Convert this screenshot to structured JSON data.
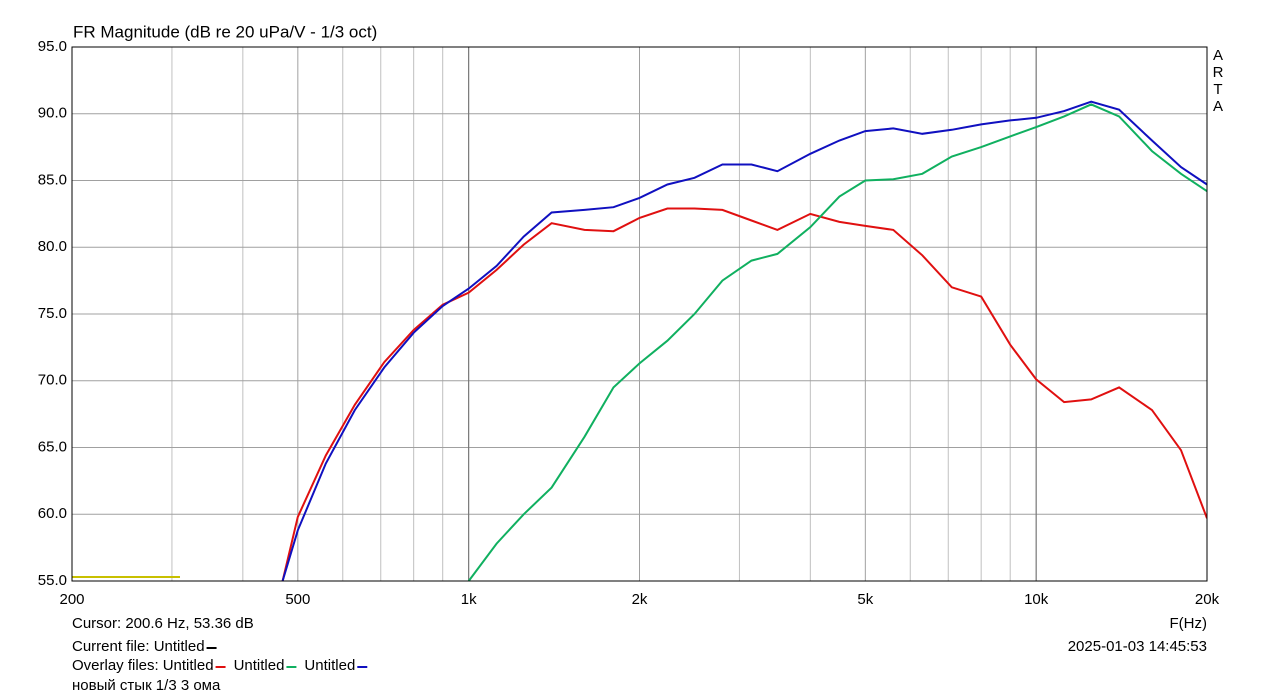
{
  "chart_data": {
    "type": "line",
    "title": "FR Magnitude (dB re 20 uPa/V - 1/3 oct)",
    "side_label": [
      "A",
      "R",
      "T",
      "A"
    ],
    "x_label": "F(Hz)",
    "log_x": true,
    "grid": true,
    "xlim": [
      200,
      20000
    ],
    "ylim": [
      55,
      95
    ],
    "xticks": [
      200,
      500,
      {
        "value": 1000,
        "label": "1k"
      },
      {
        "value": 2000,
        "label": "2k"
      },
      {
        "value": 5000,
        "label": "5k"
      },
      {
        "value": 10000,
        "label": "10k"
      },
      {
        "value": 20000,
        "label": "20k"
      }
    ],
    "xgrid_minor": [
      300,
      400,
      600,
      700,
      800,
      900,
      3000,
      4000,
      6000,
      7000,
      8000,
      9000
    ],
    "xgrid_major": [
      1000,
      10000
    ],
    "yticks": [
      {
        "value": 55,
        "label": "55.0"
      },
      {
        "value": 60,
        "label": "60.0"
      },
      {
        "value": 65,
        "label": "65.0"
      },
      {
        "value": 70,
        "label": "70.0"
      },
      {
        "value": 75,
        "label": "75.0"
      },
      {
        "value": 80,
        "label": "80.0"
      },
      {
        "value": 85,
        "label": "85.0"
      },
      {
        "value": 90,
        "label": "90.0"
      },
      {
        "value": 95,
        "label": "95.0"
      }
    ],
    "x": [
      470,
      500,
      560,
      630,
      710,
      800,
      900,
      1000,
      1120,
      1250,
      1400,
      1600,
      1800,
      2000,
      2240,
      2500,
      2800,
      3150,
      3500,
      4000,
      4500,
      5000,
      5600,
      6300,
      7100,
      8000,
      9000,
      10000,
      11200,
      12500,
      14000,
      16000,
      18000,
      20000
    ],
    "series": [
      {
        "name": "Untitled",
        "color": "#e01010",
        "values": [
          55,
          59.8,
          64.4,
          68.2,
          71.4,
          73.8,
          75.7,
          76.6,
          78.3,
          80.2,
          81.8,
          81.3,
          81.2,
          82.2,
          82.9,
          82.9,
          82.8,
          82.0,
          81.3,
          82.5,
          81.9,
          81.6,
          81.3,
          79.4,
          77.0,
          76.3,
          72.7,
          70.1,
          68.4,
          68.6,
          69.5,
          67.8,
          64.8,
          59.7
        ]
      },
      {
        "name": "Untitled",
        "color": "#10b060",
        "values": [
          null,
          null,
          null,
          null,
          null,
          null,
          null,
          55,
          57.8,
          60.0,
          62.0,
          65.8,
          69.5,
          71.3,
          73.0,
          75.0,
          77.5,
          79.0,
          79.5,
          81.5,
          83.8,
          85.0,
          85.1,
          85.5,
          86.8,
          87.5,
          88.3,
          89.0,
          89.8,
          90.7,
          89.8,
          87.2,
          85.5,
          84.2
        ]
      },
      {
        "name": "Untitled",
        "color": "#1010c0",
        "values": [
          55,
          58.8,
          63.8,
          67.8,
          71.0,
          73.6,
          75.6,
          76.9,
          78.6,
          80.8,
          82.6,
          82.8,
          83.0,
          83.7,
          84.7,
          85.2,
          86.2,
          86.2,
          85.7,
          87.0,
          88.0,
          88.7,
          88.9,
          88.5,
          88.8,
          89.2,
          89.5,
          89.7,
          90.2,
          90.9,
          90.3,
          88.0,
          86.0,
          84.7
        ]
      }
    ],
    "trace": {
      "color": "#c8c000",
      "x": [
        200,
        310
      ],
      "values": [
        55.3,
        55.3
      ]
    },
    "footer": {
      "cursor": "Cursor: 200.6 Hz, 53.36 dB",
      "current_file": "Current file: Untitled",
      "overlay_label": "Overlay files:",
      "note": "новый стык 1/3 3 ома",
      "datetime": "2025-01-03  14:45:53"
    }
  }
}
